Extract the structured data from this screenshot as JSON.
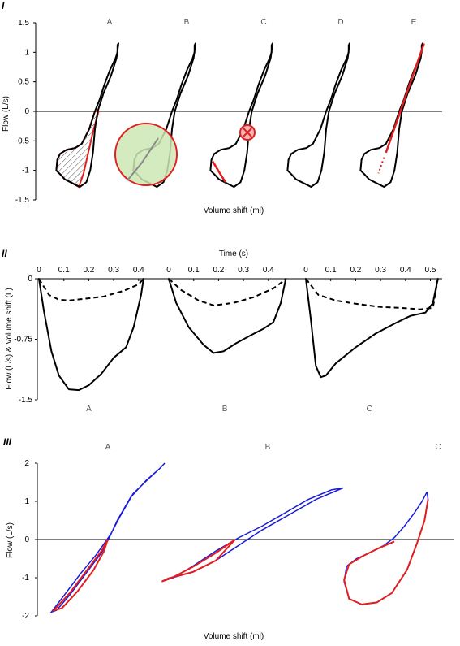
{
  "chart_data": [
    {
      "panel": "I",
      "type": "line",
      "ylabel": "Flow (L/s)",
      "xlabel": "Volume shift (ml)",
      "ylim": [
        -1.5,
        1.5
      ],
      "yticks": [
        "1.5",
        "1",
        "0.5",
        "0",
        "-0.5",
        "-1",
        "-1.5"
      ],
      "subplots": [
        "A",
        "B",
        "C",
        "D",
        "E"
      ],
      "loop": [
        [
          0.62,
          1.15
        ],
        [
          0.6,
          1.12
        ],
        [
          0.6,
          1.0
        ],
        [
          0.56,
          0.9
        ],
        [
          0.44,
          0.7
        ],
        [
          0.32,
          0.45
        ],
        [
          0.22,
          0.2
        ],
        [
          0.12,
          0.0
        ],
        [
          0.0,
          -0.3
        ],
        [
          -0.16,
          -0.55
        ],
        [
          -0.3,
          -0.62
        ],
        [
          -0.48,
          -0.65
        ],
        [
          -0.62,
          -0.72
        ],
        [
          -0.68,
          -0.82
        ],
        [
          -0.7,
          -1.0
        ],
        [
          -0.6,
          -1.08
        ],
        [
          -0.52,
          -1.15
        ],
        [
          -0.4,
          -1.2
        ],
        [
          -0.2,
          -1.28
        ],
        [
          -0.06,
          -1.2
        ],
        [
          0.02,
          -1.0
        ],
        [
          0.08,
          -0.7
        ],
        [
          0.12,
          -0.3
        ],
        [
          0.18,
          0.0
        ],
        [
          0.3,
          0.3
        ],
        [
          0.46,
          0.6
        ],
        [
          0.58,
          0.9
        ],
        [
          0.62,
          1.15
        ]
      ],
      "annotations": [
        "hatched area (A)",
        "circle highlight (B)",
        "crossed circle (C)",
        "red tangent arrow (E)"
      ]
    },
    {
      "panel": "II",
      "type": "line",
      "ylabel": "Flow (L/s) & Volume shift (L)",
      "xlabel": "Time (s)",
      "ylim": [
        -1.5,
        0
      ],
      "yticks": [
        "0",
        "-0.75",
        "-1.5"
      ],
      "subplots": [
        {
          "label": "A",
          "xticks": [
            "0",
            "0.1",
            "0.2",
            "0.3",
            "0.4"
          ],
          "xmax": 0.42,
          "flow": [
            [
              0,
              0
            ],
            [
              0.02,
              -0.4
            ],
            [
              0.05,
              -0.9
            ],
            [
              0.08,
              -1.2
            ],
            [
              0.12,
              -1.37
            ],
            [
              0.16,
              -1.38
            ],
            [
              0.2,
              -1.32
            ],
            [
              0.25,
              -1.18
            ],
            [
              0.3,
              -0.98
            ],
            [
              0.35,
              -0.85
            ],
            [
              0.38,
              -0.6
            ],
            [
              0.41,
              -0.2
            ],
            [
              0.42,
              0
            ]
          ],
          "volume": [
            [
              0,
              0
            ],
            [
              0.04,
              -0.2
            ],
            [
              0.08,
              -0.26
            ],
            [
              0.12,
              -0.27
            ],
            [
              0.18,
              -0.25
            ],
            [
              0.26,
              -0.22
            ],
            [
              0.34,
              -0.15
            ],
            [
              0.4,
              -0.07
            ],
            [
              0.42,
              0
            ]
          ]
        },
        {
          "label": "B",
          "xticks": [
            "0",
            "0.1",
            "0.2",
            "0.3",
            "0.4"
          ],
          "xmax": 0.47,
          "flow": [
            [
              0,
              0
            ],
            [
              0.03,
              -0.3
            ],
            [
              0.08,
              -0.6
            ],
            [
              0.14,
              -0.82
            ],
            [
              0.18,
              -0.92
            ],
            [
              0.22,
              -0.9
            ],
            [
              0.27,
              -0.8
            ],
            [
              0.33,
              -0.7
            ],
            [
              0.38,
              -0.62
            ],
            [
              0.42,
              -0.54
            ],
            [
              0.45,
              -0.3
            ],
            [
              0.47,
              0
            ]
          ],
          "volume": [
            [
              0,
              0
            ],
            [
              0.05,
              -0.14
            ],
            [
              0.12,
              -0.27
            ],
            [
              0.18,
              -0.33
            ],
            [
              0.26,
              -0.3
            ],
            [
              0.34,
              -0.23
            ],
            [
              0.42,
              -0.12
            ],
            [
              0.46,
              -0.03
            ],
            [
              0.47,
              0
            ]
          ]
        },
        {
          "label": "C",
          "xticks": [
            "0",
            "0.1",
            "0.2",
            "0.3",
            "0.4",
            "0.5"
          ],
          "xmax": 0.53,
          "flow": [
            [
              0,
              0
            ],
            [
              0.02,
              -0.5
            ],
            [
              0.04,
              -1.08
            ],
            [
              0.06,
              -1.22
            ],
            [
              0.08,
              -1.2
            ],
            [
              0.12,
              -1.05
            ],
            [
              0.2,
              -0.85
            ],
            [
              0.28,
              -0.68
            ],
            [
              0.36,
              -0.55
            ],
            [
              0.42,
              -0.46
            ],
            [
              0.48,
              -0.42
            ],
            [
              0.51,
              -0.3
            ],
            [
              0.53,
              0
            ]
          ],
          "volume": [
            [
              0,
              0
            ],
            [
              0.05,
              -0.2
            ],
            [
              0.12,
              -0.27
            ],
            [
              0.2,
              -0.31
            ],
            [
              0.3,
              -0.35
            ],
            [
              0.38,
              -0.36
            ],
            [
              0.46,
              -0.38
            ],
            [
              0.51,
              -0.36
            ],
            [
              0.53,
              0
            ]
          ]
        }
      ]
    },
    {
      "panel": "III",
      "type": "line",
      "ylabel": "Flow (L/s)",
      "xlabel": "Volume shift (ml)",
      "ylim": [
        -2,
        2
      ],
      "yticks": [
        "2",
        "1",
        "0",
        "-1",
        "-2"
      ],
      "subplots": [
        {
          "label": "A",
          "blue": [
            [
              1.2,
              2.0
            ],
            [
              1.1,
              1.85
            ],
            [
              0.9,
              1.6
            ],
            [
              0.6,
              1.2
            ],
            [
              0.35,
              0.6
            ],
            [
              0.18,
              0.15
            ],
            [
              0.08,
              -0.05
            ],
            [
              -0.1,
              -0.4
            ],
            [
              -0.4,
              -0.9
            ],
            [
              -0.7,
              -1.45
            ],
            [
              -0.95,
              -1.9
            ],
            [
              -0.85,
              -1.85
            ],
            [
              -0.6,
              -1.45
            ],
            [
              -0.3,
              -0.9
            ],
            [
              0.0,
              -0.35
            ],
            [
              0.15,
              0.05
            ],
            [
              0.3,
              0.5
            ],
            [
              0.55,
              1.1
            ],
            [
              0.85,
              1.55
            ],
            [
              1.1,
              1.85
            ],
            [
              1.2,
              2.0
            ]
          ],
          "red": [
            [
              0.12,
              0.0
            ],
            [
              0.0,
              -0.3
            ],
            [
              -0.3,
              -0.85
            ],
            [
              -0.6,
              -1.4
            ],
            [
              -0.9,
              -1.85
            ],
            [
              -0.75,
              -1.8
            ],
            [
              -0.45,
              -1.35
            ],
            [
              -0.15,
              -0.8
            ],
            [
              0.05,
              -0.3
            ],
            [
              0.12,
              0.0
            ]
          ]
        },
        {
          "label": "B",
          "blue": [
            [
              1.45,
              1.35
            ],
            [
              1.3,
              1.3
            ],
            [
              1.0,
              1.05
            ],
            [
              0.7,
              0.7
            ],
            [
              0.4,
              0.35
            ],
            [
              0.1,
              0.05
            ],
            [
              -0.2,
              -0.3
            ],
            [
              -0.5,
              -0.7
            ],
            [
              -0.75,
              -1.0
            ],
            [
              -0.9,
              -1.1
            ],
            [
              -0.85,
              -1.05
            ],
            [
              -0.5,
              -0.85
            ],
            [
              -0.2,
              -0.55
            ],
            [
              0.1,
              -0.15
            ],
            [
              0.4,
              0.25
            ],
            [
              0.75,
              0.65
            ],
            [
              1.1,
              1.05
            ],
            [
              1.45,
              1.35
            ]
          ],
          "red": [
            [
              0.05,
              0.0
            ],
            [
              -0.2,
              -0.35
            ],
            [
              -0.5,
              -0.72
            ],
            [
              -0.75,
              -0.98
            ],
            [
              -0.9,
              -1.1
            ],
            [
              -0.82,
              -1.02
            ],
            [
              -0.5,
              -0.85
            ],
            [
              -0.2,
              -0.55
            ],
            [
              0.05,
              0.0
            ]
          ]
        },
        {
          "label": "C",
          "blue": [
            [
              0.7,
              1.25
            ],
            [
              0.6,
              1.0
            ],
            [
              0.45,
              0.7
            ],
            [
              0.25,
              0.35
            ],
            [
              0.05,
              0.05
            ],
            [
              -0.15,
              -0.15
            ],
            [
              -0.45,
              -0.35
            ],
            [
              -0.7,
              -0.5
            ],
            [
              -0.9,
              -0.7
            ],
            [
              -0.95,
              -1.1
            ],
            [
              -0.85,
              -1.55
            ],
            [
              -0.6,
              -1.7
            ],
            [
              -0.3,
              -1.65
            ],
            [
              0.0,
              -1.4
            ],
            [
              0.3,
              -0.8
            ],
            [
              0.5,
              -0.1
            ],
            [
              0.65,
              0.5
            ],
            [
              0.72,
              1.05
            ],
            [
              0.7,
              1.25
            ]
          ],
          "red": [
            [
              0.05,
              -0.05
            ],
            [
              -0.3,
              -0.25
            ],
            [
              -0.6,
              -0.45
            ],
            [
              -0.85,
              -0.65
            ],
            [
              -0.95,
              -1.05
            ],
            [
              -0.85,
              -1.55
            ],
            [
              -0.6,
              -1.7
            ],
            [
              -0.3,
              -1.65
            ],
            [
              0.0,
              -1.4
            ],
            [
              0.3,
              -0.8
            ],
            [
              0.5,
              -0.1
            ],
            [
              0.65,
              0.5
            ],
            [
              0.72,
              1.05
            ]
          ]
        }
      ]
    }
  ],
  "colors": {
    "primary": "#000000",
    "highlight": "#e02020",
    "blue": "#1a1adb",
    "green": "#cce8b5",
    "grey": "#888888"
  }
}
